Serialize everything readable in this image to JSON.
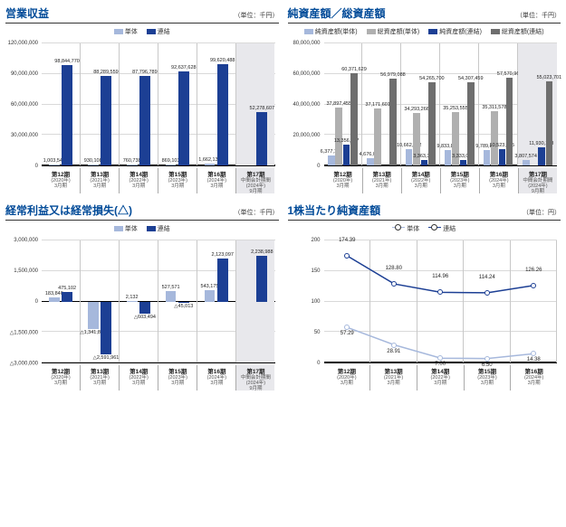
{
  "colors": {
    "series_light": "#a6b8dc",
    "series_dark": "#1c3f94",
    "series_gray1": "#b0b0b0",
    "series_gray2": "#6e6e6e",
    "grid": "#d9d9d9",
    "slot_border": "#c8c8c8",
    "highlight_bg": "#e8e8ec"
  },
  "periods": [
    {
      "l1": "第12期",
      "l2": "(2020年)\n3月期"
    },
    {
      "l1": "第13期",
      "l2": "(2021年)\n3月期"
    },
    {
      "l1": "第14期",
      "l2": "(2022年)\n3月期"
    },
    {
      "l1": "第15期",
      "l2": "(2023年)\n3月期"
    },
    {
      "l1": "第16期",
      "l2": "(2024年)\n3月期"
    },
    {
      "l1": "第17期",
      "l2": "中間会計期間\n(2024年)\n9月期"
    }
  ],
  "periods5": [
    {
      "l1": "第12期",
      "l2": "(2020年)\n3月期"
    },
    {
      "l1": "第13期",
      "l2": "(2021年)\n3月期"
    },
    {
      "l1": "第14期",
      "l2": "(2022年)\n3月期"
    },
    {
      "l1": "第15期",
      "l2": "(2023年)\n3月期"
    },
    {
      "l1": "第16期",
      "l2": "(2024年)\n3月期"
    }
  ],
  "panels": {
    "rev": {
      "title": "営業収益",
      "unit": "（単位：千円）",
      "legend": [
        {
          "label": "単体",
          "color": "#a6b8dc"
        },
        {
          "label": "連結",
          "color": "#1c3f94"
        }
      ],
      "ylim": [
        0,
        120000000
      ],
      "yticks": [
        0,
        30000000,
        60000000,
        90000000,
        120000000
      ],
      "height": 170,
      "highlight_last": true,
      "series": [
        {
          "color": "#a6b8dc",
          "values": [
            1003548,
            930108,
            760738,
            869103,
            1662138,
            null
          ],
          "labels": [
            "1,003,548",
            "930,108",
            "760,738",
            "869,103",
            "1,662,138",
            null
          ]
        },
        {
          "color": "#1c3f94",
          "values": [
            98844770,
            88289559,
            87796789,
            92637628,
            99620488,
            52278607
          ],
          "labels": [
            "98,844,770",
            "88,289,559",
            "87,796,789",
            "92,637,628",
            "99,620,488",
            "52,278,607"
          ]
        }
      ]
    },
    "net": {
      "title": "純資産額／総資産額",
      "unit": "（単位：千円）",
      "legend": [
        {
          "label": "純資産額(単体)",
          "color": "#a6b8dc"
        },
        {
          "label": "総資産額(単体)",
          "color": "#b0b0b0"
        },
        {
          "label": "純資産額(連結)",
          "color": "#1c3f94"
        },
        {
          "label": "総資産額(連結)",
          "color": "#6e6e6e"
        }
      ],
      "ylim": [
        0,
        80000000
      ],
      "yticks": [
        0,
        20000000,
        40000000,
        60000000,
        80000000
      ],
      "height": 170,
      "highlight_last": true,
      "series": [
        {
          "color": "#a6b8dc",
          "values": [
            6377162,
            4676079,
            10662782,
            9833852,
            9789808,
            3807574
          ],
          "labels": [
            "6,377,162",
            "4,676,079",
            "10,662,782",
            "9,833,852",
            "9,789,808",
            "3,807,574"
          ]
        },
        {
          "color": "#b0b0b0",
          "values": [
            37897455,
            37171601,
            34293266,
            35253555,
            35311578,
            null
          ],
          "labels": [
            "37,897,455",
            "37,171,601",
            "34,293,266",
            "35,253,555",
            "35,311,578",
            null
          ]
        },
        {
          "color": "#1c3f94",
          "values": [
            13356837,
            null,
            3363331,
            3333019,
            10523525,
            11930148
          ],
          "labels": [
            "13,356,837",
            null,
            "3,363,331",
            "3,333,019",
            "10,523,525",
            "11,930,148"
          ]
        },
        {
          "color": "#6e6e6e",
          "values": [
            60371629,
            56979088,
            54265700,
            54307459,
            57570962,
            55023701
          ],
          "labels": [
            "60,371,629",
            "56,979,088",
            "54,265,700",
            "54,307,459",
            "57,570,962",
            "55,023,701"
          ]
        }
      ]
    },
    "ord": {
      "title": "経常利益又は経常損失(△)",
      "unit": "（単位：千円）",
      "legend": [
        {
          "label": "単体",
          "color": "#a6b8dc"
        },
        {
          "label": "連結",
          "color": "#1c3f94"
        }
      ],
      "ylim": [
        -3000000,
        3000000
      ],
      "yticks": [
        -3000000,
        -1500000,
        0,
        1500000,
        3000000
      ],
      "ylabels": [
        "△3,000,000",
        "△1,500,000",
        "0",
        "1,500,000",
        "3,000,000"
      ],
      "height": 170,
      "highlight_last": true,
      "series": [
        {
          "color": "#a6b8dc",
          "values": [
            183840,
            -1341863,
            2132,
            527571,
            543175,
            null
          ],
          "labels": [
            "183,840",
            "△1,341,863",
            "2,132",
            "527,571",
            "543,175",
            null
          ]
        },
        {
          "color": "#1c3f94",
          "values": [
            475102,
            -2591961,
            -603494,
            -45013,
            2123097,
            2238988
          ],
          "labels": [
            "475,102",
            "△2,591,961",
            "△603,494",
            "△45,013",
            "2,123,097",
            "2,238,988"
          ]
        }
      ]
    },
    "pershare": {
      "title": "1株当たり純資産額",
      "unit": "（単位：円）",
      "legend": [
        {
          "label": "単体",
          "color": "#a6b8dc"
        },
        {
          "label": "連結",
          "color": "#1c3f94"
        }
      ],
      "ylim": [
        0,
        200
      ],
      "yticks": [
        0,
        50,
        100,
        150,
        200
      ],
      "height": 170,
      "series": [
        {
          "color": "#a6b8dc",
          "values": [
            57.29,
            28.91,
            7.0,
            6.5,
            14.38
          ],
          "labels": [
            "57.29",
            "28.91",
            "7.00",
            "6.50",
            "14.38"
          ]
        },
        {
          "color": "#1c3f94",
          "values": [
            174.39,
            128.8,
            114.96,
            114.24,
            126.26
          ],
          "labels": [
            "174.39",
            "128.80",
            "114.96",
            "114.24",
            "126.26"
          ]
        }
      ]
    }
  }
}
